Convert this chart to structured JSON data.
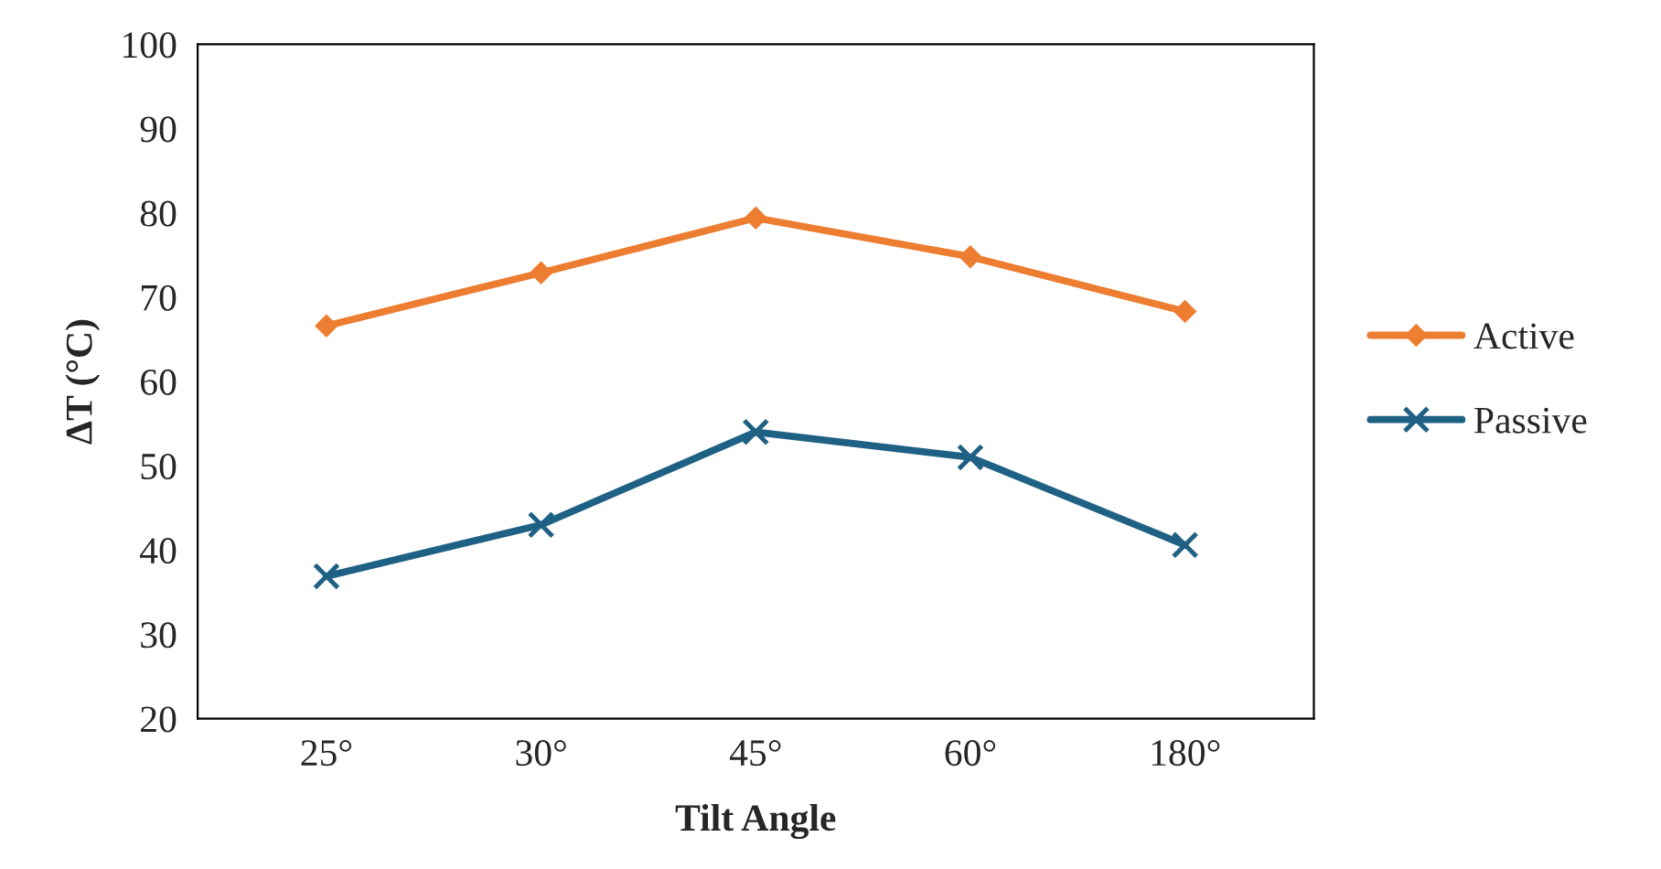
{
  "chart_data": {
    "type": "line",
    "xlabel": "Tilt Angle",
    "ylabel": "ΔT (°C)",
    "categories": [
      "25°",
      "30°",
      "45°",
      "60°",
      "180°"
    ],
    "series": [
      {
        "name": "Active",
        "color": "#ed7d31",
        "marker": "diamond",
        "values": [
          66.6,
          72.9,
          79.4,
          74.8,
          68.3
        ]
      },
      {
        "name": "Passive",
        "color": "#1f6184",
        "marker": "cross",
        "values": [
          36.9,
          43.0,
          54.0,
          51.0,
          40.6
        ]
      }
    ],
    "ylim": [
      20,
      100
    ],
    "yticks": [
      20,
      30,
      40,
      50,
      60,
      70,
      80,
      90,
      100
    ],
    "grid": false,
    "legend": "right",
    "line_style": "solid"
  }
}
